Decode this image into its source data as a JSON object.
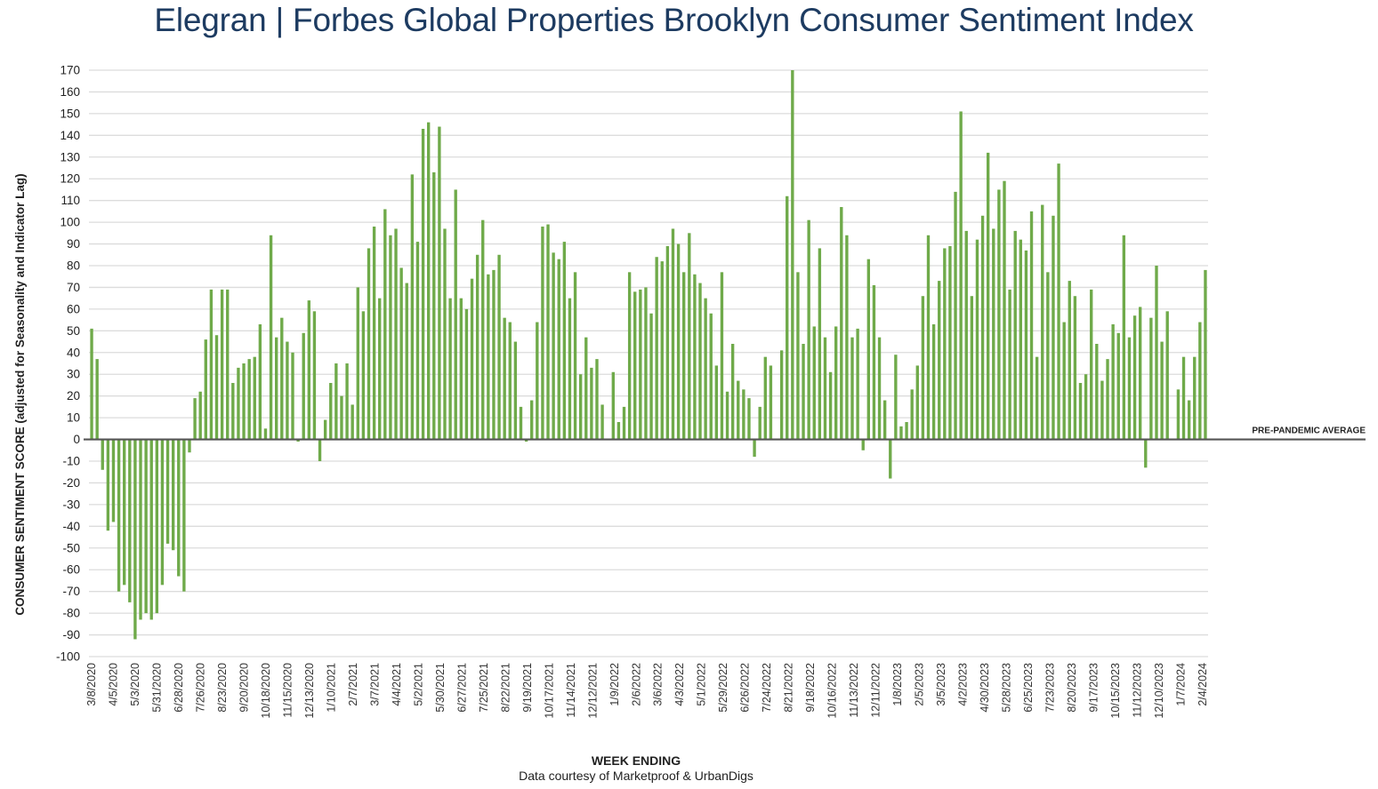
{
  "header": {
    "brand": "Elegran | Forbes Global Properties",
    "subtitle": "Brooklyn Consumer Sentiment Index"
  },
  "colors": {
    "bar": "#6faa4a",
    "title": "#1d3b61",
    "grid": "#dcdcdc",
    "baseline": "#555555"
  },
  "chart_data": {
    "type": "bar",
    "ylabel": "CONSUMER SENTIMENT SCORE (adjusted for Seasonality and Indicator Lag)",
    "xlabel": "WEEK ENDING",
    "ylim": [
      -100,
      170
    ],
    "ytick_step": 10,
    "grid": true,
    "reference_line": {
      "value": 0,
      "label": "PRE-PANDEMIC AVERAGE"
    },
    "xtick_labels": [
      "3/8/2020",
      "4/5/2020",
      "5/3/2020",
      "5/31/2020",
      "6/28/2020",
      "7/26/2020",
      "8/23/2020",
      "9/20/2020",
      "10/18/2020",
      "11/15/2020",
      "12/13/2020",
      "1/10/2021",
      "2/7/2021",
      "3/7/2021",
      "4/4/2021",
      "5/2/2021",
      "5/30/2021",
      "6/27/2021",
      "7/25/2021",
      "8/22/2021",
      "9/19/2021",
      "10/17/2021",
      "11/14/2021",
      "12/12/2021",
      "1/9/2022",
      "2/6/2022",
      "3/6/2022",
      "4/3/2022",
      "5/1/2022",
      "5/29/2022",
      "6/26/2022",
      "7/24/2022",
      "8/21/2022",
      "9/18/2022",
      "10/16/2022",
      "11/13/2022",
      "12/11/2022",
      "1/8/2023",
      "2/5/2023",
      "3/5/2023",
      "4/2/2023",
      "4/30/2023",
      "5/28/2023",
      "6/25/2023",
      "7/23/2023",
      "8/20/2023",
      "9/17/2023",
      "10/15/2023",
      "11/12/2023",
      "12/10/2023",
      "1/7/2024",
      "2/4/2024"
    ],
    "values": [
      51,
      37,
      -14,
      -42,
      -38,
      -70,
      -67,
      -75,
      -92,
      -83,
      -80,
      -83,
      -80,
      -67,
      -48,
      -51,
      -63,
      -70,
      -6,
      19,
      22,
      46,
      69,
      48,
      69,
      69,
      26,
      33,
      35,
      37,
      38,
      53,
      5,
      94,
      47,
      56,
      45,
      40,
      -1,
      49,
      64,
      59,
      -10,
      9,
      26,
      35,
      20,
      35,
      16,
      70,
      59,
      88,
      98,
      65,
      106,
      94,
      97,
      79,
      72,
      122,
      91,
      143,
      146,
      123,
      144,
      97,
      65,
      115,
      65,
      60,
      74,
      85,
      101,
      76,
      78,
      85,
      56,
      54,
      45,
      15,
      -1,
      18,
      54,
      98,
      99,
      86,
      83,
      91,
      65,
      77,
      30,
      47,
      33,
      37,
      16,
      0,
      31,
      8,
      15,
      77,
      68,
      69,
      70,
      58,
      84,
      82,
      89,
      97,
      90,
      77,
      95,
      76,
      72,
      65,
      58,
      34,
      77,
      22,
      44,
      27,
      23,
      19,
      -8,
      15,
      38,
      34,
      0,
      41,
      112,
      170,
      77,
      44,
      101,
      52,
      88,
      47,
      31,
      52,
      107,
      94,
      47,
      51,
      -5,
      83,
      71,
      47,
      18,
      -18,
      39,
      6,
      8,
      23,
      34,
      66,
      94,
      53,
      73,
      88,
      89,
      114,
      151,
      96,
      66,
      92,
      103,
      132,
      97,
      115,
      119,
      69,
      96,
      92,
      87,
      105,
      38,
      108,
      77,
      103,
      127,
      54,
      73,
      66,
      26,
      30,
      69,
      44,
      27,
      37,
      53,
      49,
      94,
      47,
      57,
      61,
      -13,
      56,
      80,
      45,
      59,
      0,
      23,
      38,
      18,
      38,
      54,
      78
    ]
  },
  "footer": {
    "credit": "Data courtesy of Marketproof & UrbanDigs"
  }
}
